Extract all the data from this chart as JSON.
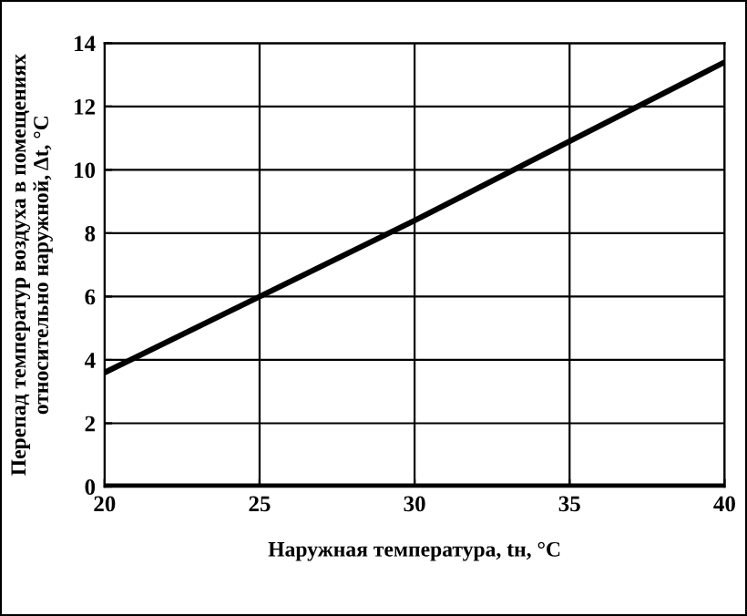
{
  "chart_data": {
    "type": "line",
    "xlabel": "Наружная температура, tн, °C",
    "ylabel": "Перепад температур воздуха в помещениях\nотносительно наружной, Δt, °C",
    "x": [
      20,
      25,
      30,
      35,
      40
    ],
    "series": [
      {
        "color": "#000000",
        "values": [
          3.6,
          6.0,
          8.4,
          10.9,
          13.4
        ]
      }
    ],
    "xlim": [
      20,
      40
    ],
    "xticks": [
      20,
      25,
      30,
      35,
      40
    ],
    "ylim": [
      0,
      14
    ],
    "yticks": [
      0,
      2,
      4,
      6,
      8,
      10,
      12,
      14
    ],
    "grid": true,
    "marker": "none",
    "line_style": "solid"
  }
}
